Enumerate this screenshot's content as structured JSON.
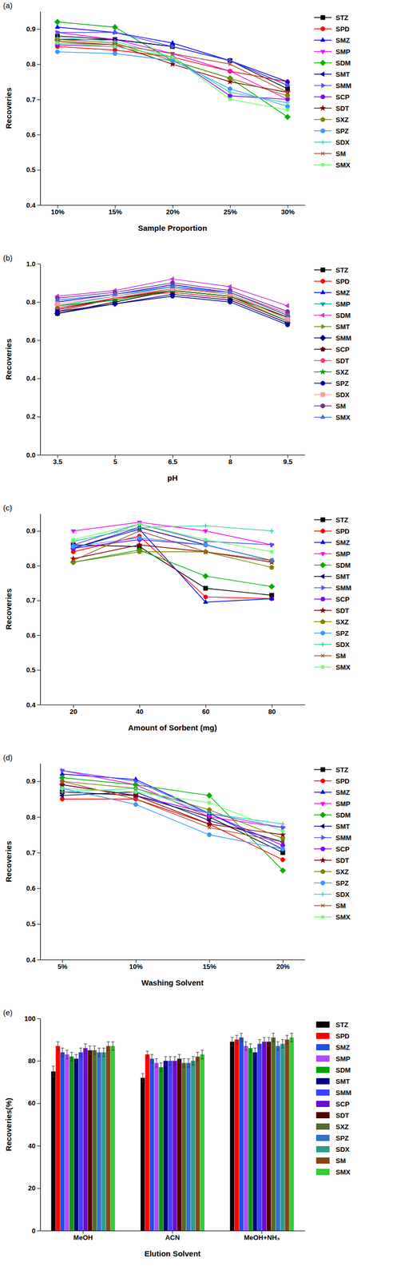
{
  "chart_data": [
    {
      "type": "line",
      "title": "(a)",
      "x_label": "Sample Proportion",
      "y_label": "Recoveries",
      "categories": [
        "10%",
        "15%",
        "20%",
        "25%",
        "30%"
      ],
      "ylim": [
        0.4,
        0.95
      ],
      "yticks": [
        0.4,
        0.5,
        0.6,
        0.7,
        0.8,
        0.9
      ],
      "legend": "right",
      "series": [
        {
          "name": "STZ",
          "color": "#000000",
          "marker": "square",
          "values": [
            0.88,
            0.87,
            0.85,
            0.81,
            0.73
          ]
        },
        {
          "name": "SPD",
          "color": "#ff0000",
          "marker": "circle",
          "values": [
            0.85,
            0.84,
            0.82,
            0.78,
            0.75
          ]
        },
        {
          "name": "SMZ",
          "color": "#0000ff",
          "marker": "triangle-up",
          "values": [
            0.905,
            0.89,
            0.86,
            0.81,
            0.75
          ]
        },
        {
          "name": "SMP",
          "color": "#ff00ff",
          "marker": "triangle-down",
          "values": [
            0.89,
            0.87,
            0.83,
            0.78,
            0.7
          ]
        },
        {
          "name": "SDM",
          "color": "#00b000",
          "marker": "diamond",
          "values": [
            0.92,
            0.905,
            0.81,
            0.76,
            0.65
          ]
        },
        {
          "name": "SMT",
          "color": "#000080",
          "marker": "triangle-left",
          "values": [
            0.87,
            0.87,
            0.85,
            0.81,
            0.74
          ]
        },
        {
          "name": "SMM",
          "color": "#5050ff",
          "marker": "triangle-right",
          "values": [
            0.89,
            0.89,
            0.85,
            0.81,
            0.74
          ]
        },
        {
          "name": "SCP",
          "color": "#8000ff",
          "marker": "hexagon",
          "values": [
            0.855,
            0.85,
            0.82,
            0.71,
            0.7
          ]
        },
        {
          "name": "SDT",
          "color": "#800000",
          "marker": "star",
          "values": [
            0.865,
            0.855,
            0.8,
            0.75,
            0.72
          ]
        },
        {
          "name": "SXZ",
          "color": "#808000",
          "marker": "pentagon",
          "values": [
            0.87,
            0.86,
            0.81,
            0.76,
            0.71
          ]
        },
        {
          "name": "SPZ",
          "color": "#3399ff",
          "marker": "circle",
          "values": [
            0.835,
            0.83,
            0.81,
            0.73,
            0.68
          ]
        },
        {
          "name": "SDX",
          "color": "#33cccc",
          "marker": "plus",
          "values": [
            0.875,
            0.865,
            0.82,
            0.72,
            0.69
          ]
        },
        {
          "name": "SM",
          "color": "#a0522d",
          "marker": "cross",
          "values": [
            0.86,
            0.855,
            0.83,
            0.8,
            0.72
          ]
        },
        {
          "name": "SMX",
          "color": "#66ff66",
          "marker": "asterisk",
          "values": [
            0.86,
            0.85,
            0.82,
            0.7,
            0.67
          ]
        }
      ]
    },
    {
      "type": "line",
      "title": "(b)",
      "x_label": "pH",
      "y_label": "Recoveries",
      "categories": [
        "3.5",
        "5",
        "6.5",
        "8",
        "9.5"
      ],
      "ylim": [
        0,
        1.0
      ],
      "yticks": [
        {
          "value": 0,
          "label": "0.0"
        },
        0.2,
        0.4,
        0.6,
        0.8,
        {
          "value": 1.0,
          "label": "1.0"
        }
      ],
      "legend": "right",
      "series": [
        {
          "name": "STZ",
          "color": "#000000",
          "marker": "square",
          "values": [
            0.74,
            0.8,
            0.86,
            0.83,
            0.72
          ]
        },
        {
          "name": "SPD",
          "color": "#ff0000",
          "marker": "circle",
          "values": [
            0.75,
            0.82,
            0.85,
            0.82,
            0.7
          ]
        },
        {
          "name": "SMZ",
          "color": "#0000ff",
          "marker": "triangle-up",
          "values": [
            0.8,
            0.84,
            0.89,
            0.85,
            0.73
          ]
        },
        {
          "name": "SMP",
          "color": "#00a0a0",
          "marker": "triangle-down",
          "values": [
            0.78,
            0.83,
            0.88,
            0.84,
            0.71
          ]
        },
        {
          "name": "SDM",
          "color": "#cc33cc",
          "marker": "triangle-left",
          "values": [
            0.83,
            0.86,
            0.92,
            0.88,
            0.78
          ]
        },
        {
          "name": "SMT",
          "color": "#6b8e23",
          "marker": "triangle-right",
          "values": [
            0.77,
            0.81,
            0.87,
            0.84,
            0.72
          ]
        },
        {
          "name": "SMM",
          "color": "#000080",
          "marker": "diamond",
          "values": [
            0.74,
            0.79,
            0.84,
            0.81,
            0.69
          ]
        },
        {
          "name": "SCP",
          "color": "#660000",
          "marker": "pentagon",
          "values": [
            0.76,
            0.82,
            0.86,
            0.83,
            0.72
          ]
        },
        {
          "name": "SDT",
          "color": "#ff3366",
          "marker": "circle",
          "values": [
            0.77,
            0.82,
            0.87,
            0.85,
            0.74
          ]
        },
        {
          "name": "SXZ",
          "color": "#009900",
          "marker": "star",
          "values": [
            0.78,
            0.81,
            0.86,
            0.83,
            0.7
          ]
        },
        {
          "name": "SPZ",
          "color": "#0000aa",
          "marker": "circle",
          "values": [
            0.75,
            0.79,
            0.83,
            0.8,
            0.68
          ]
        },
        {
          "name": "SDX",
          "color": "#ff9999",
          "marker": "square",
          "values": [
            0.79,
            0.83,
            0.87,
            0.84,
            0.71
          ]
        },
        {
          "name": "SM",
          "color": "#7030a0",
          "marker": "circle",
          "values": [
            0.82,
            0.85,
            0.9,
            0.86,
            0.75
          ]
        },
        {
          "name": "SMX",
          "color": "#4169e1",
          "marker": "triangle-up",
          "values": [
            0.81,
            0.84,
            0.88,
            0.85,
            0.73
          ]
        }
      ]
    },
    {
      "type": "line",
      "title": "(c)",
      "x_label": "Amount of Sorbent (mg)",
      "y_label": "Recoveries",
      "x": [
        20,
        40,
        60,
        80
      ],
      "xlim": [
        10,
        90
      ],
      "xticks": [
        20,
        40,
        60,
        80
      ],
      "ylim": [
        0.4,
        0.95
      ],
      "yticks": [
        0.4,
        0.5,
        0.6,
        0.7,
        0.8,
        0.9
      ],
      "legend": "right",
      "series": [
        {
          "name": "STZ",
          "color": "#000000",
          "marker": "square",
          "values": [
            0.86,
            0.855,
            0.735,
            0.715
          ]
        },
        {
          "name": "SPD",
          "color": "#ff0000",
          "marker": "circle",
          "values": [
            0.84,
            0.885,
            0.71,
            0.705
          ]
        },
        {
          "name": "SMZ",
          "color": "#0000ff",
          "marker": "triangle-up",
          "values": [
            0.85,
            0.905,
            0.695,
            0.705
          ]
        },
        {
          "name": "SMP",
          "color": "#ff00ff",
          "marker": "triangle-down",
          "values": [
            0.9,
            0.925,
            0.9,
            0.86
          ]
        },
        {
          "name": "SDM",
          "color": "#00b000",
          "marker": "diamond",
          "values": [
            0.81,
            0.845,
            0.77,
            0.74
          ]
        },
        {
          "name": "SMT",
          "color": "#000080",
          "marker": "triangle-left",
          "values": [
            0.85,
            0.91,
            0.86,
            0.815
          ]
        },
        {
          "name": "SMM",
          "color": "#5050ff",
          "marker": "triangle-right",
          "values": [
            0.86,
            0.92,
            0.87,
            0.86
          ]
        },
        {
          "name": "SCP",
          "color": "#8000ff",
          "marker": "hexagon",
          "values": [
            0.85,
            0.875,
            0.86,
            0.815
          ]
        },
        {
          "name": "SDT",
          "color": "#800000",
          "marker": "star",
          "values": [
            0.82,
            0.86,
            0.84,
            0.81
          ]
        },
        {
          "name": "SXZ",
          "color": "#808000",
          "marker": "pentagon",
          "values": [
            0.81,
            0.84,
            0.84,
            0.795
          ]
        },
        {
          "name": "SPZ",
          "color": "#3399ff",
          "marker": "circle",
          "values": [
            0.855,
            0.88,
            0.86,
            0.815
          ]
        },
        {
          "name": "SDX",
          "color": "#33cc99",
          "marker": "plus",
          "values": [
            0.87,
            0.91,
            0.915,
            0.9
          ]
        },
        {
          "name": "SM",
          "color": "#a0522d",
          "marker": "cross",
          "values": [
            0.815,
            0.9,
            0.84,
            0.815
          ]
        },
        {
          "name": "SMX",
          "color": "#66ff66",
          "marker": "asterisk",
          "values": [
            0.875,
            0.92,
            0.875,
            0.84
          ]
        }
      ]
    },
    {
      "type": "line",
      "title": "(d)",
      "x_label": "Washing Solvent",
      "y_label": "Recoveries",
      "categories": [
        "5%",
        "10%",
        "15%",
        "20%"
      ],
      "ylim": [
        0.4,
        0.95
      ],
      "yticks": [
        0.4,
        0.5,
        0.6,
        0.7,
        0.8,
        0.9
      ],
      "legend": "right",
      "series": [
        {
          "name": "STZ",
          "color": "#000000",
          "marker": "square",
          "values": [
            0.87,
            0.86,
            0.8,
            0.7
          ]
        },
        {
          "name": "SPD",
          "color": "#ff0000",
          "marker": "circle",
          "values": [
            0.85,
            0.85,
            0.78,
            0.68
          ]
        },
        {
          "name": "SMZ",
          "color": "#0000ff",
          "marker": "triangle-up",
          "values": [
            0.92,
            0.905,
            0.81,
            0.71
          ]
        },
        {
          "name": "SMP",
          "color": "#ff00ff",
          "marker": "triangle-down",
          "values": [
            0.93,
            0.89,
            0.8,
            0.77
          ]
        },
        {
          "name": "SDM",
          "color": "#00b000",
          "marker": "diamond",
          "values": [
            0.91,
            0.89,
            0.86,
            0.65
          ]
        },
        {
          "name": "SMT",
          "color": "#000080",
          "marker": "triangle-left",
          "values": [
            0.86,
            0.87,
            0.79,
            0.73
          ]
        },
        {
          "name": "SMM",
          "color": "#5050ff",
          "marker": "triangle-right",
          "values": [
            0.93,
            0.9,
            0.81,
            0.77
          ]
        },
        {
          "name": "SCP",
          "color": "#8000ff",
          "marker": "hexagon",
          "values": [
            0.89,
            0.86,
            0.81,
            0.72
          ]
        },
        {
          "name": "SDT",
          "color": "#800000",
          "marker": "star",
          "values": [
            0.89,
            0.86,
            0.78,
            0.75
          ]
        },
        {
          "name": "SXZ",
          "color": "#808000",
          "marker": "pentagon",
          "values": [
            0.9,
            0.88,
            0.82,
            0.74
          ]
        },
        {
          "name": "SPZ",
          "color": "#3399ff",
          "marker": "circle",
          "values": [
            0.88,
            0.835,
            0.75,
            0.71
          ]
        },
        {
          "name": "SDX",
          "color": "#33cccc",
          "marker": "plus",
          "values": [
            0.87,
            0.88,
            0.81,
            0.78
          ]
        },
        {
          "name": "SM",
          "color": "#a0522d",
          "marker": "cross",
          "values": [
            0.9,
            0.85,
            0.77,
            0.73
          ]
        },
        {
          "name": "SMX",
          "color": "#66ff66",
          "marker": "asterisk",
          "values": [
            0.88,
            0.87,
            0.84,
            0.76
          ]
        }
      ]
    },
    {
      "type": "bar",
      "title": "(e)",
      "x_label": "Elution Solvent",
      "y_label": "Recoveries(%)",
      "categories": [
        "MeOH",
        "ACN",
        "MeOH+NH₃"
      ],
      "ylim": [
        0,
        100
      ],
      "yticks": [
        0,
        20,
        40,
        60,
        80,
        100
      ],
      "legend": "right",
      "series": [
        {
          "name": "STZ",
          "color": "#000000",
          "values": [
            75,
            72,
            89
          ],
          "errors": [
            2.5,
            2,
            2
          ]
        },
        {
          "name": "SPD",
          "color": "#ff0000",
          "values": [
            87,
            83,
            90
          ],
          "errors": [
            2,
            1.5,
            2
          ]
        },
        {
          "name": "SMZ",
          "color": "#1f4fe0",
          "values": [
            84,
            81,
            91
          ],
          "errors": [
            2,
            2,
            2
          ]
        },
        {
          "name": "SMP",
          "color": "#b04cff",
          "values": [
            83,
            79,
            87
          ],
          "errors": [
            2,
            2,
            2
          ]
        },
        {
          "name": "SDM",
          "color": "#00a000",
          "values": [
            82,
            77,
            86
          ],
          "errors": [
            2,
            2,
            2
          ]
        },
        {
          "name": "SMT",
          "color": "#000080",
          "values": [
            81,
            80,
            84
          ],
          "errors": [
            2,
            2,
            2
          ]
        },
        {
          "name": "SMM",
          "color": "#3f3fff",
          "values": [
            84,
            80,
            88
          ],
          "errors": [
            2,
            2,
            2
          ]
        },
        {
          "name": "SCP",
          "color": "#6a0dd0",
          "values": [
            86,
            80,
            89
          ],
          "errors": [
            2,
            2,
            2
          ]
        },
        {
          "name": "SDT",
          "color": "#500000",
          "values": [
            85,
            81,
            89
          ],
          "errors": [
            2,
            2,
            2
          ]
        },
        {
          "name": "SXZ",
          "color": "#556b2f",
          "values": [
            85,
            79,
            91
          ],
          "errors": [
            2,
            2,
            2
          ]
        },
        {
          "name": "SPZ",
          "color": "#3070d0",
          "values": [
            84,
            79,
            87
          ],
          "errors": [
            2,
            2,
            2
          ]
        },
        {
          "name": "SDX",
          "color": "#2a9d8f",
          "values": [
            84,
            80,
            88
          ],
          "errors": [
            2,
            2,
            2
          ]
        },
        {
          "name": "SM",
          "color": "#8b4513",
          "values": [
            87,
            82,
            90
          ],
          "errors": [
            2,
            2,
            2
          ]
        },
        {
          "name": "SMX",
          "color": "#33cc33",
          "values": [
            87,
            83,
            91
          ],
          "errors": [
            2,
            2,
            2
          ]
        }
      ]
    }
  ]
}
